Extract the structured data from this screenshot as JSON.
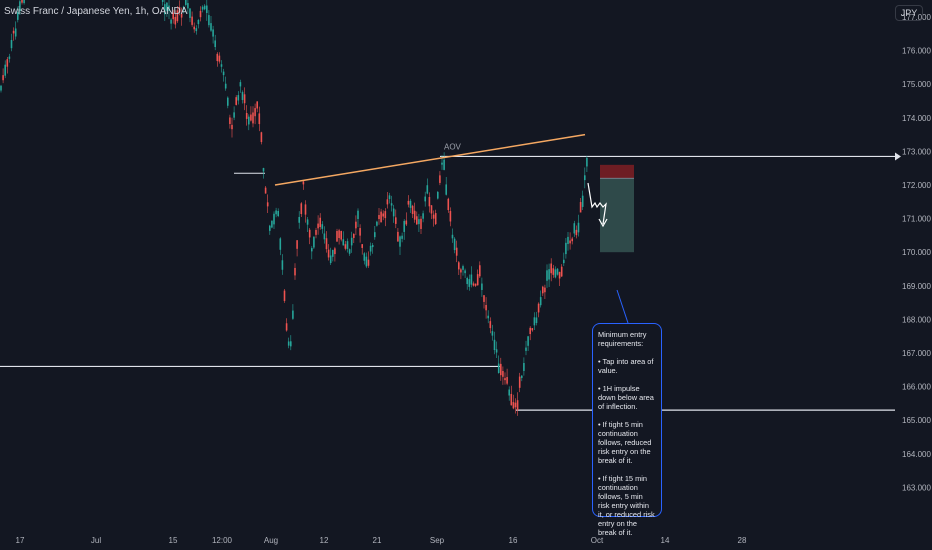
{
  "header": {
    "symbol_title": "Swiss Franc / Japanese Yen, 1h, OANDA",
    "currency_badge": "JPY"
  },
  "chart_data": {
    "type": "candlestick",
    "title": "Swiss Franc / Japanese Yen, 1h, OANDA",
    "ylim": [
      162.8,
      178.7
    ],
    "x_ticks": [
      "17",
      "Jul",
      "15",
      "12:00",
      "Aug",
      "12",
      "21",
      "Sep",
      "16",
      "Oct",
      "14",
      "28"
    ],
    "y_ticks": [
      163.0,
      164.0,
      165.0,
      166.0,
      167.0,
      168.0,
      169.0,
      170.0,
      171.0,
      172.0,
      173.0,
      174.0,
      175.0,
      176.0,
      177.0
    ],
    "series": [
      {
        "kind": "price-path",
        "points": [
          [
            0,
            174.7
          ],
          [
            10,
            176.0
          ],
          [
            20,
            177.2
          ],
          [
            30,
            178.2
          ],
          [
            40,
            178.7
          ],
          [
            160,
            178.6
          ],
          [
            163,
            177.5
          ],
          [
            175,
            176.8
          ],
          [
            185,
            177.4
          ],
          [
            195,
            176.6
          ],
          [
            205,
            177.3
          ],
          [
            215,
            176.2
          ],
          [
            225,
            175.0
          ],
          [
            232,
            173.6
          ],
          [
            240,
            175.0
          ],
          [
            250,
            173.8
          ],
          [
            258,
            174.5
          ],
          [
            264,
            172.3
          ],
          [
            270,
            170.8
          ],
          [
            278,
            171.3
          ],
          [
            285,
            168.5
          ],
          [
            290,
            166.7
          ],
          [
            296,
            169.8
          ],
          [
            303,
            172.0
          ],
          [
            312,
            170.0
          ],
          [
            320,
            170.9
          ],
          [
            330,
            169.8
          ],
          [
            340,
            170.6
          ],
          [
            350,
            169.9
          ],
          [
            358,
            171.2
          ],
          [
            366,
            169.5
          ],
          [
            372,
            170.2
          ],
          [
            380,
            171.0
          ],
          [
            390,
            171.5
          ],
          [
            400,
            170.3
          ],
          [
            410,
            171.5
          ],
          [
            420,
            170.8
          ],
          [
            428,
            171.8
          ],
          [
            435,
            170.9
          ],
          [
            443,
            172.8
          ],
          [
            452,
            170.5
          ],
          [
            460,
            169.6
          ],
          [
            470,
            169.0
          ],
          [
            480,
            169.3
          ],
          [
            490,
            167.8
          ],
          [
            500,
            166.5
          ],
          [
            508,
            166.0
          ],
          [
            516,
            165.3
          ],
          [
            522,
            166.4
          ],
          [
            530,
            167.5
          ],
          [
            540,
            168.5
          ],
          [
            550,
            169.6
          ],
          [
            560,
            169.4
          ],
          [
            570,
            170.4
          ],
          [
            578,
            170.8
          ],
          [
            583,
            171.7
          ],
          [
            587,
            172.6
          ]
        ]
      }
    ],
    "annotations": {
      "trendline_label": "AOV",
      "trendline": [
        [
          275,
          172.0
        ],
        [
          585,
          173.5
        ]
      ],
      "resistance_level": 172.85,
      "support_levels": [
        166.6,
        165.3
      ],
      "position": {
        "stop": [
          172.2,
          172.6
        ],
        "target": [
          170.0,
          172.2
        ]
      },
      "note_lines": [
        "Minimum entry requirements:",
        "• Tap into area of value.",
        "• 1H impulse down below area of inflection.",
        "• If tight 5 min continuation follows, reduced risk entry on the break of it.",
        "• If tight 15 min continuation follows, 5 min risk entry within it, or reduced risk entry on the break of it."
      ]
    },
    "grid": false,
    "legend": "none",
    "colors": {
      "background": "#131722",
      "up": "#26a69a",
      "down": "#ef5350",
      "trendline": "#f5a862",
      "levels": "#e0e3eb",
      "stop_zone": "#6e1d23",
      "target_zone": "#2f4a4a",
      "note_border": "#2962ff"
    }
  }
}
